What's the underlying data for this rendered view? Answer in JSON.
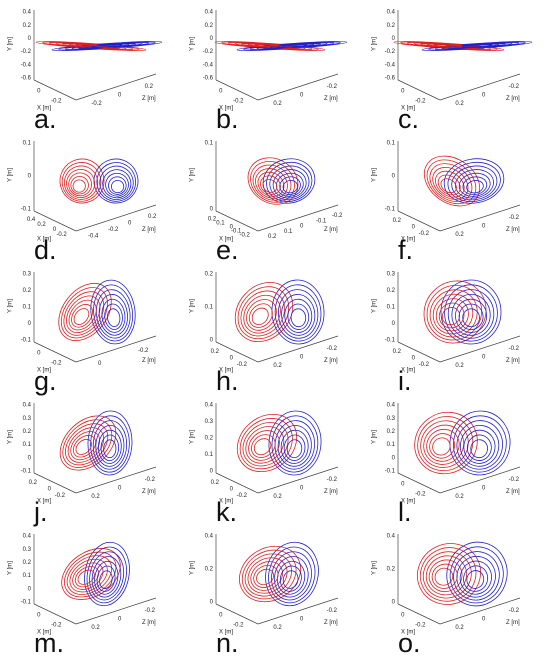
{
  "panels": [
    {
      "label": "a.",
      "y_axis": "Y [m]",
      "x_axis": "X [m]",
      "z_axis": "Z [m]",
      "y_ticks": [
        "0.4",
        "0.2",
        "0",
        "-0.2",
        "-0.4",
        "-0.6"
      ],
      "x_ticks": [
        "0",
        "-0.2"
      ],
      "z_ticks": [
        "-0.2",
        "0",
        "0.2"
      ]
    },
    {
      "label": "b.",
      "y_axis": "Y [m]",
      "x_axis": "X [m]",
      "z_axis": "Z [m]",
      "y_ticks": [
        "0.4",
        "0.2",
        "0",
        "-0.2",
        "-0.4",
        "-0.6"
      ],
      "x_ticks": [
        "0",
        "-0.2"
      ],
      "z_ticks": [
        "0.2",
        "0",
        "-0.2"
      ]
    },
    {
      "label": "c.",
      "y_axis": "Y [m]",
      "x_axis": "X [m]",
      "z_axis": "Z [m]",
      "y_ticks": [
        "0.4",
        "0.2",
        "0",
        "-0.2",
        "-0.4",
        "-0.6"
      ],
      "x_ticks": [
        "0",
        "-0.2"
      ],
      "z_ticks": [
        "0.2",
        "0",
        "-0.2"
      ]
    },
    {
      "label": "d.",
      "y_axis": "Y [m]",
      "x_axis": "X [m]",
      "z_axis": "Z [m]",
      "y_ticks": [
        "0.1",
        "0",
        "-0.1"
      ],
      "x_ticks": [
        "0.4",
        "0.2",
        "0",
        "-0.2"
      ],
      "z_ticks": [
        "-0.4",
        "-0.2",
        "0",
        "0.2"
      ]
    },
    {
      "label": "e.",
      "y_axis": "Y [m]",
      "x_axis": "X [m]",
      "z_axis": "Z [m]",
      "y_ticks": [
        "0.1",
        "0"
      ],
      "x_ticks": [
        "0.2",
        "0.1",
        "0",
        "-0.1",
        "-0.2"
      ],
      "z_ticks": [
        "0.2",
        "0.1",
        "0",
        "-0.1",
        "-0.2"
      ]
    },
    {
      "label": "f.",
      "y_axis": "Y [m]",
      "x_axis": "X [m]",
      "z_axis": "Z [m]",
      "y_ticks": [
        "0.1",
        "0",
        "-0.1"
      ],
      "x_ticks": [
        "0.2",
        "0",
        "-0.2"
      ],
      "z_ticks": [
        "0.2",
        "0",
        "-0.2"
      ]
    },
    {
      "label": "g.",
      "y_axis": "Y [m]",
      "x_axis": "X [m]",
      "z_axis": "Z [m]",
      "y_ticks": [
        "0.3",
        "0.2",
        "0.1",
        "0",
        "-0.1"
      ],
      "x_ticks": [
        "0",
        "-0.2"
      ],
      "z_ticks": [
        "0",
        "-0.2"
      ]
    },
    {
      "label": "h.",
      "y_axis": "Y [m]",
      "x_axis": "X [m]",
      "z_axis": "Z [m]",
      "y_ticks": [
        "0.2",
        "0.1",
        "0"
      ],
      "x_ticks": [
        "0.2",
        "0",
        "-0.2"
      ],
      "z_ticks": [
        "0.2",
        "0",
        "-0.2"
      ]
    },
    {
      "label": "i.",
      "y_axis": "Y [m]",
      "x_axis": "X [m]",
      "z_axis": "Z [m]",
      "y_ticks": [
        "0.3",
        "0.2",
        "0.1",
        "0",
        "-0.1"
      ],
      "x_ticks": [
        "0.2",
        "0",
        "-0.2"
      ],
      "z_ticks": [
        "0.2",
        "0",
        "-0.2"
      ]
    },
    {
      "label": "j.",
      "y_axis": "Y [m]",
      "x_axis": "X [m]",
      "z_axis": "Z [m]",
      "y_ticks": [
        "0.4",
        "0.3",
        "0.2",
        "0.1",
        "0",
        "-0.1"
      ],
      "x_ticks": [
        "0.2",
        "0",
        "-0.2"
      ],
      "z_ticks": [
        "0.2",
        "0",
        "-0.2"
      ]
    },
    {
      "label": "k.",
      "y_axis": "Y [m]",
      "x_axis": "X [m]",
      "z_axis": "Z [m]",
      "y_ticks": [
        "0.4",
        "0.3",
        "0.2",
        "0.1",
        "0"
      ],
      "x_ticks": [
        "0.2",
        "0",
        "-0.2"
      ],
      "z_ticks": [
        "0.2",
        "0",
        "-0.2"
      ]
    },
    {
      "label": "l.",
      "y_axis": "Y [m]",
      "x_axis": "X [m]",
      "z_axis": "Z [m]",
      "y_ticks": [
        "0.4",
        "0.3",
        "0.2",
        "0.1",
        "0",
        "-0.1"
      ],
      "x_ticks": [
        "0",
        "-0.2"
      ],
      "z_ticks": [
        "0.2",
        "0",
        "-0.2"
      ]
    },
    {
      "label": "m.",
      "y_axis": "Y [m]",
      "x_axis": "X [m]",
      "z_axis": "Z [m]",
      "y_ticks": [
        "0.4",
        "0.3",
        "0.2",
        "0.1",
        "0",
        "-0.1"
      ],
      "x_ticks": [
        "0",
        "-0.2"
      ],
      "z_ticks": [
        "0.2",
        "0",
        "-0.2"
      ]
    },
    {
      "label": "n.",
      "y_axis": "Y [m]",
      "x_axis": "X [m]",
      "z_axis": "Z [m]",
      "y_ticks": [
        "0.4",
        "0.2",
        "0"
      ],
      "x_ticks": [
        "0",
        "-0.2"
      ],
      "z_ticks": [
        "0.2",
        "0",
        "-0.2"
      ]
    },
    {
      "label": "o.",
      "y_axis": "Y [m]",
      "x_axis": "X [m]",
      "z_axis": "Z [m]",
      "y_ticks": [
        "0.4",
        "0.2",
        "0"
      ],
      "x_ticks": [
        "0",
        "-0.2"
      ],
      "z_ticks": [
        "0.2",
        "0",
        "-0.2"
      ]
    }
  ]
}
